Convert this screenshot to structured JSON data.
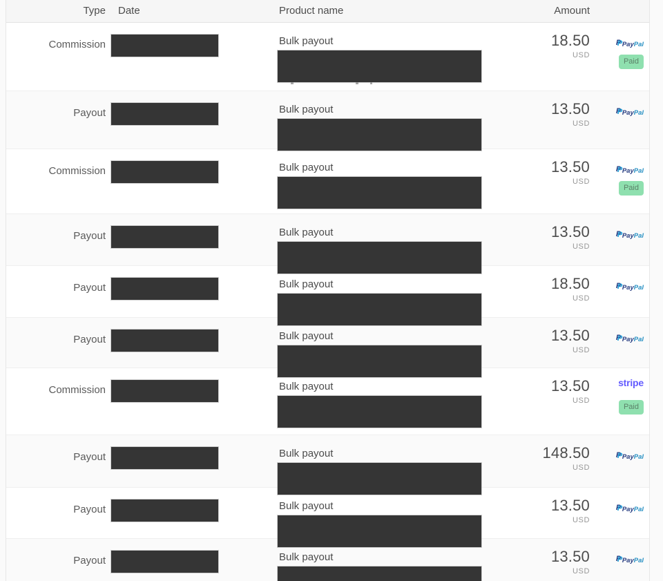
{
  "table": {
    "header": {
      "type": "Type",
      "date": "Date",
      "product": "Product name",
      "amount": "Amount"
    },
    "paid_badge_label": "Paid",
    "logos": {
      "paypal_mark": "P",
      "paypal_pay": "Pay",
      "paypal_pal": "Pal",
      "stripe": "stripe"
    },
    "colors": {
      "paypal_dark": "#253b80",
      "paypal_light": "#179bd7",
      "stripe_purple": "#635bff",
      "paid_badge_bg": "#8fe0af",
      "paid_badge_text": "#5b8068",
      "redaction_box": "#353535"
    },
    "rows": [
      {
        "type": "Commission",
        "product": "Bulk payout",
        "amount": "18.50",
        "currency": "USD",
        "method": "paypal",
        "paid": true,
        "height": 98,
        "artifacts": true
      },
      {
        "type": "Payout",
        "product": "Bulk payout",
        "amount": "13.50",
        "currency": "USD",
        "method": "paypal",
        "paid": false,
        "height": 84,
        "artifacts": false
      },
      {
        "type": "Commission",
        "product": "Bulk payout",
        "amount": "13.50",
        "currency": "USD",
        "method": "paypal",
        "paid": true,
        "height": 94,
        "artifacts": false
      },
      {
        "type": "Payout",
        "product": "Bulk payout",
        "amount": "13.50",
        "currency": "USD",
        "method": "paypal",
        "paid": false,
        "height": 75,
        "artifacts": false
      },
      {
        "type": "Payout",
        "product": "Bulk payout",
        "amount": "18.50",
        "currency": "USD",
        "method": "paypal",
        "paid": false,
        "height": 75,
        "artifacts": false
      },
      {
        "type": "Payout",
        "product": "Bulk payout",
        "amount": "13.50",
        "currency": "USD",
        "method": "paypal",
        "paid": false,
        "height": 73,
        "artifacts": false
      },
      {
        "type": "Commission",
        "product": "Bulk payout",
        "amount": "13.50",
        "currency": "USD",
        "method": "stripe",
        "paid": true,
        "height": 97,
        "artifacts": false
      },
      {
        "type": "Payout",
        "product": "Bulk payout",
        "amount": "148.50",
        "currency": "USD",
        "method": "paypal",
        "paid": false,
        "height": 76,
        "artifacts": false
      },
      {
        "type": "Payout",
        "product": "Bulk payout",
        "amount": "13.50",
        "currency": "USD",
        "method": "paypal",
        "paid": false,
        "height": 74,
        "artifacts": false
      },
      {
        "type": "Payout",
        "product": "Bulk payout",
        "amount": "13.50",
        "currency": "USD",
        "method": "paypal",
        "paid": false,
        "height": 62,
        "artifacts": false
      }
    ]
  }
}
